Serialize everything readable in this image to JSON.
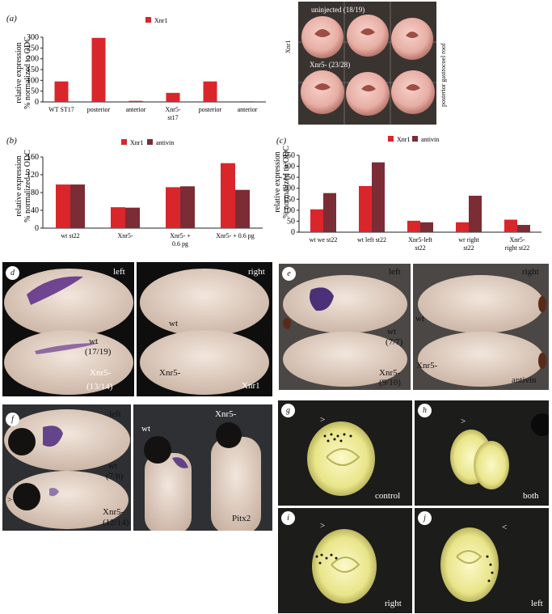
{
  "colors": {
    "xnr1": "#d9262b",
    "antivin": "#7b2c35",
    "photo_bg_dark": "#1c1c1a",
    "embryo": "#e9d6c6"
  },
  "panel_a": {
    "label": "(a)",
    "legend": [
      "Xnr1"
    ],
    "ylabel_line1": "relative expression",
    "ylabel_line2": "% normalized to ODC"
  },
  "panel_a_photo": {
    "uninjected_label": "uninjected (18/19)",
    "xnr5_label": "Xnr5- (23/28)",
    "side_label": "Xnr1",
    "roof_label": "posterior gastrocoel roof"
  },
  "panel_b": {
    "label": "(b)",
    "legend": [
      "Xnr1",
      "antivin"
    ],
    "ylabel_line1": "relative expression",
    "ylabel_line2": "% normalized to ODC"
  },
  "panel_c": {
    "label": "(c)",
    "legend": [
      "Xnr1",
      "antivin"
    ],
    "ylabel_line1": "relative expression",
    "ylabel_line2": "% normalized to ODC"
  },
  "chart_data": [
    {
      "type": "bar",
      "categories": [
        [
          "WT ST17"
        ],
        [
          "posterior"
        ],
        [
          "anterior"
        ],
        [
          "Xnr5-",
          "st17"
        ],
        [
          "posterior"
        ],
        [
          "anterior"
        ]
      ],
      "series": [
        {
          "name": "Xnr1",
          "values": [
            95,
            297,
            5,
            42,
            95,
            3
          ]
        }
      ],
      "ylim": [
        0,
        300
      ],
      "yticks": [
        0,
        50,
        100,
        150,
        200,
        250,
        300
      ]
    },
    {
      "type": "bar",
      "categories": [
        [
          "wt st22"
        ],
        [
          "Xnr5-"
        ],
        [
          "Xnr5- +",
          "0.6 pg"
        ],
        [
          "Xnr5- + 0.6 pg"
        ]
      ],
      "series": [
        {
          "name": "Xnr1",
          "values": [
            98,
            47,
            92,
            146
          ]
        },
        {
          "name": "antivin",
          "values": [
            98,
            46,
            94,
            86
          ]
        }
      ],
      "ylim": [
        0,
        160
      ],
      "yticks": [
        0,
        40,
        80,
        120,
        160
      ]
    },
    {
      "type": "bar",
      "categories": [
        [
          "wt we st22"
        ],
        [
          "wt  left  st22"
        ],
        [
          "Xnr5-left",
          "st22"
        ],
        [
          "wr right",
          "st22"
        ],
        [
          "Xnr5-",
          "right st22"
        ]
      ],
      "series": [
        {
          "name": "Xnr1",
          "values": [
            104,
            210,
            52,
            45,
            57
          ]
        },
        {
          "name": "antivin",
          "values": [
            178,
            318,
            45,
            166,
            33
          ]
        }
      ],
      "ylim": [
        0,
        350
      ],
      "yticks": [
        0,
        50,
        100,
        150,
        200,
        250,
        300,
        350
      ]
    }
  ],
  "panel_d": {
    "label": "d",
    "left": "left",
    "right": "right",
    "wt": "wt",
    "wt_count": "(17/19)",
    "xnr5": "Xnr5-",
    "xnr5_count": "(13/14)",
    "wt_r": "wt",
    "xnr5_r": "Xnr5-",
    "gene": "Xnr1"
  },
  "panel_e": {
    "label": "e",
    "left": "left",
    "right": "right",
    "wt": "wt",
    "wt_count": "(7/7)",
    "xnr5": "Xnr5-",
    "xnr5_count": "(9/10)",
    "wt_r": "wt",
    "xnr5_r": "Xnr5-",
    "gene": "antivin"
  },
  "panel_f": {
    "label": "f",
    "left": "left",
    "wt": "wt",
    "wt_count": "(7/8)",
    "xnr5": "Xnr5-",
    "xnr5_count": "(12/14)",
    "arrow": ">",
    "wt_r": "wt",
    "xnr5_r": "Xnr5-",
    "gene": "Pitx2"
  },
  "panel_g": {
    "label": "g",
    "text": "control",
    "arrow": ">"
  },
  "panel_h": {
    "label": "h",
    "text": "both",
    "arrow": ">"
  },
  "panel_i": {
    "label": "i",
    "text": "right",
    "arrow": ">"
  },
  "panel_j": {
    "label": "j",
    "text": "left",
    "arrow": "<"
  }
}
